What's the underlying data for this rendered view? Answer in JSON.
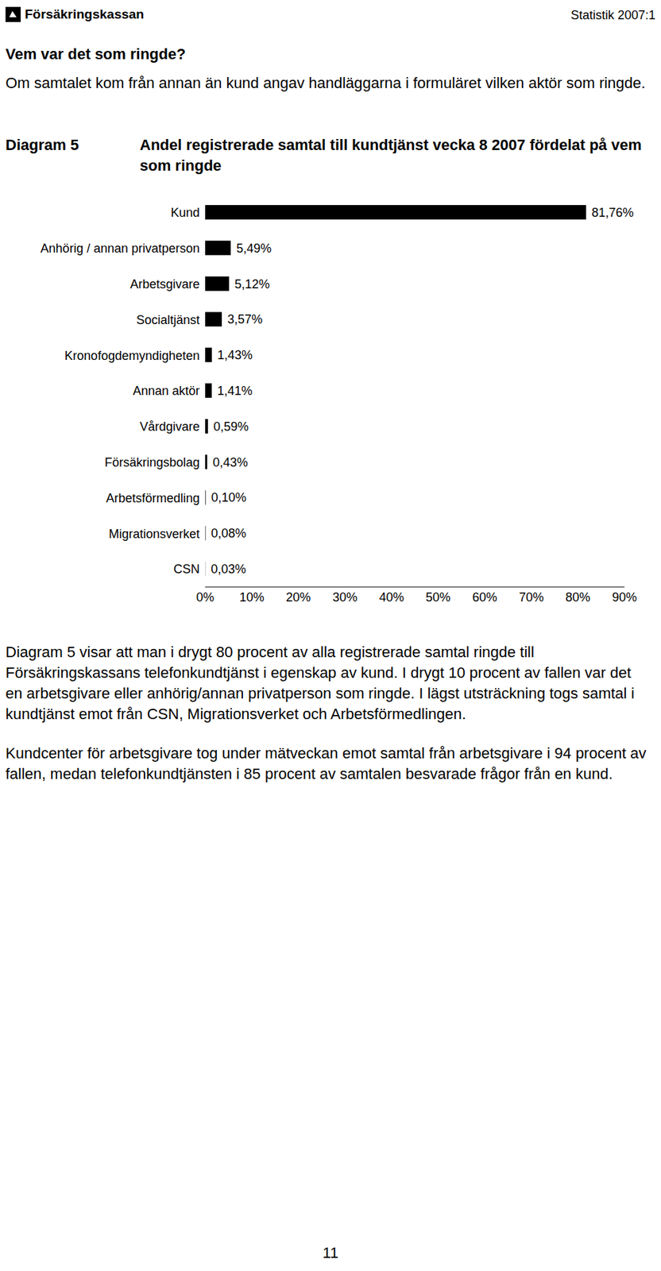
{
  "header": {
    "logo": "Försäkringskassan",
    "series": "Statistik 2007:1"
  },
  "heading": "Vem var det som ringde?",
  "intro": "Om samtalet kom från annan än kund angav handläggarna i formuläret vilken aktör som ringde.",
  "diagram_label": "Diagram 5",
  "chart_data": {
    "type": "bar",
    "orientation": "horizontal",
    "title": "Andel registrerade samtal till kundtjänst vecka 8 2007 fördelat på vem som ringde",
    "categories": [
      "Kund",
      "Anhörig / annan privatperson",
      "Arbetsgivare",
      "Socialtjänst",
      "Kronofogdemyndigheten",
      "Annan aktör",
      "Vårdgivare",
      "Försäkringsbolag",
      "Arbetsförmedling",
      "Migrationsverket",
      "CSN"
    ],
    "values": [
      81.76,
      5.49,
      5.12,
      3.57,
      1.43,
      1.41,
      0.59,
      0.43,
      0.1,
      0.08,
      0.03
    ],
    "value_labels": [
      "81,76%",
      "5,49%",
      "5,12%",
      "3,57%",
      "1,43%",
      "1,41%",
      "0,59%",
      "0,43%",
      "0,10%",
      "0,08%",
      "0,03%"
    ],
    "color": "#000000",
    "data_labels": true,
    "grid": false,
    "xlim": [
      0,
      90
    ],
    "xticks": [
      {
        "value": 0,
        "label": "0%"
      },
      {
        "value": 10,
        "label": "10%"
      },
      {
        "value": 20,
        "label": "20%"
      },
      {
        "value": 30,
        "label": "30%"
      },
      {
        "value": 40,
        "label": "40%"
      },
      {
        "value": 50,
        "label": "50%"
      },
      {
        "value": 60,
        "label": "60%"
      },
      {
        "value": 70,
        "label": "70%"
      },
      {
        "value": 80,
        "label": "80%"
      },
      {
        "value": 90,
        "label": "90%"
      }
    ]
  },
  "paragraphs": [
    "Diagram 5 visar att man i drygt 80 procent av alla registrerade samtal ringde till Försäkringskassans telefonkundtjänst i egenskap av kund. I drygt 10 procent av fallen var det en arbetsgivare eller anhörig/annan privatperson som ringde. I lägst utsträckning togs samtal i kundtjänst emot från CSN, Migrationsverket och Arbetsförmedlingen.",
    "Kundcenter för arbetsgivare tog under mätveckan emot samtal från arbetsgivare i 94 procent av fallen, medan telefonkundtjänsten i 85 procent av samtalen besvarade frågor från en kund."
  ],
  "page_number": "11"
}
